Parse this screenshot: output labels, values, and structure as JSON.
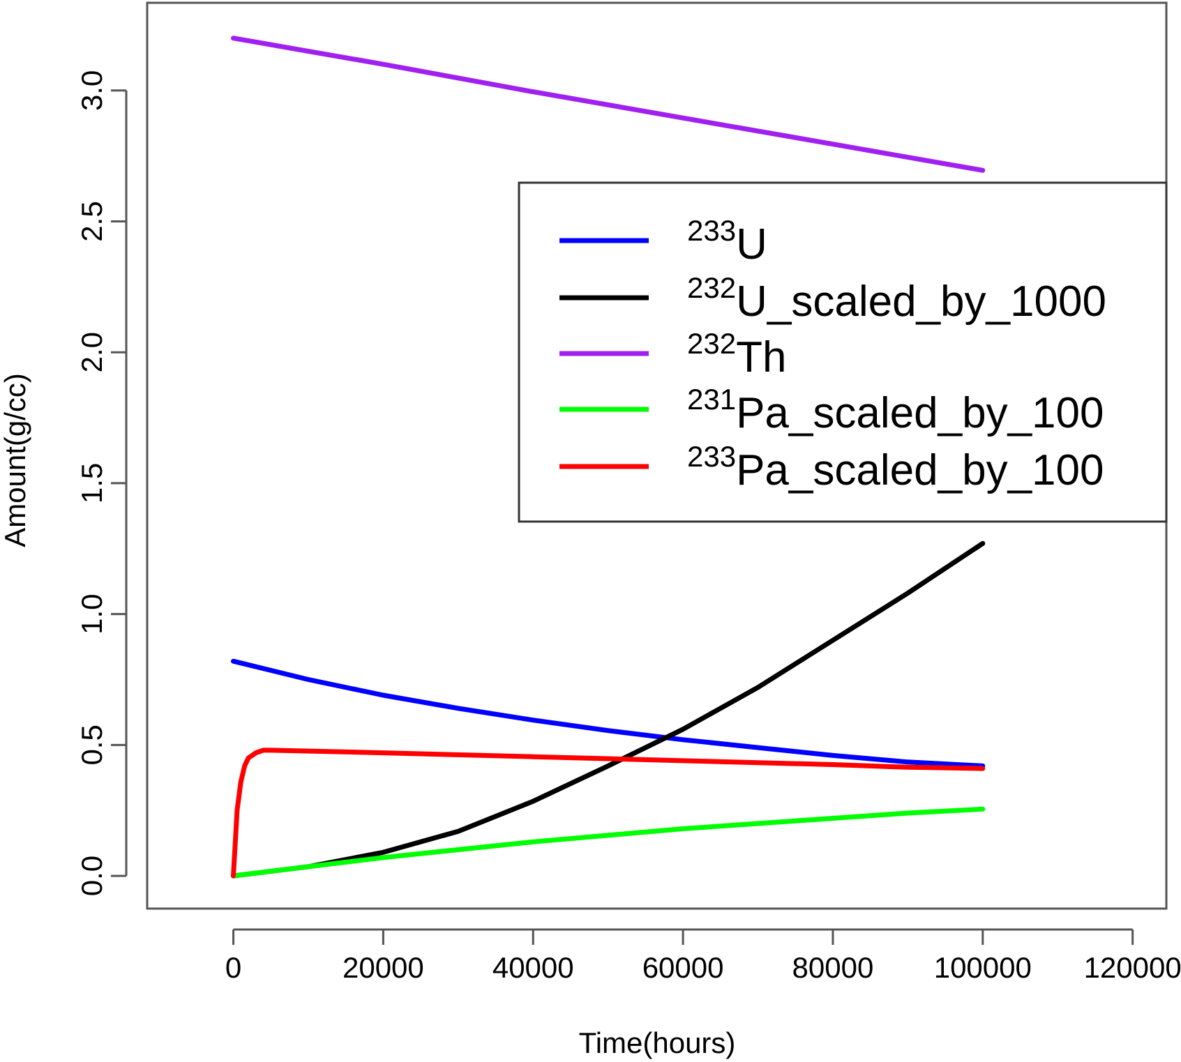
{
  "chart_data": {
    "type": "line",
    "title": "",
    "xlabel": "Time(hours)",
    "ylabel": "Amount(g/cc)",
    "xlim": [
      -11500,
      124500
    ],
    "ylim": [
      -0.125,
      3.335
    ],
    "x_ticks": [
      0,
      20000,
      40000,
      60000,
      80000,
      100000,
      120000
    ],
    "x_tick_labels": [
      "0",
      "20000",
      "40000",
      "60000",
      "80000",
      "100000",
      "120000"
    ],
    "y_ticks": [
      0.0,
      0.5,
      1.0,
      1.5,
      2.0,
      2.5,
      3.0
    ],
    "y_tick_labels": [
      "0.0",
      "0.5",
      "1.0",
      "1.5",
      "2.0",
      "2.5",
      "3.0"
    ],
    "grid": false,
    "legend_position": "right",
    "series": [
      {
        "name": "U",
        "superscript": "233",
        "color": "#0000ff",
        "x": [
          0,
          10000,
          20000,
          30000,
          40000,
          50000,
          60000,
          70000,
          80000,
          90000,
          100000
        ],
        "y": [
          0.82,
          0.75,
          0.69,
          0.64,
          0.595,
          0.555,
          0.52,
          0.49,
          0.46,
          0.435,
          0.42
        ]
      },
      {
        "name": "U_scaled_by_1000",
        "superscript": "232",
        "color": "#000000",
        "x": [
          0,
          10000,
          20000,
          30000,
          40000,
          50000,
          60000,
          70000,
          80000,
          90000,
          100000
        ],
        "y": [
          0.0,
          0.035,
          0.09,
          0.17,
          0.285,
          0.42,
          0.56,
          0.72,
          0.9,
          1.08,
          1.27
        ]
      },
      {
        "name": "Th",
        "superscript": "232",
        "color": "#a020f0",
        "x": [
          0,
          20000,
          40000,
          60000,
          80000,
          100000
        ],
        "y": [
          3.2,
          3.1,
          2.995,
          2.895,
          2.795,
          2.695
        ]
      },
      {
        "name": "Pa_scaled_by_100",
        "superscript": "231",
        "color": "#00ff00",
        "x": [
          0,
          10000,
          20000,
          30000,
          40000,
          50000,
          60000,
          70000,
          80000,
          90000,
          100000
        ],
        "y": [
          0.0,
          0.035,
          0.07,
          0.1,
          0.13,
          0.155,
          0.18,
          0.2,
          0.22,
          0.24,
          0.255
        ]
      },
      {
        "name": "Pa_scaled_by_100",
        "superscript": "233",
        "color": "#ff0000",
        "x": [
          0,
          200,
          500,
          1000,
          1500,
          2000,
          3000,
          4000,
          5000,
          20000,
          40000,
          60000,
          80000,
          90000,
          100000
        ],
        "y": [
          0.0,
          0.1,
          0.25,
          0.36,
          0.42,
          0.45,
          0.47,
          0.48,
          0.48,
          0.47,
          0.455,
          0.44,
          0.425,
          0.415,
          0.41
        ]
      }
    ]
  }
}
